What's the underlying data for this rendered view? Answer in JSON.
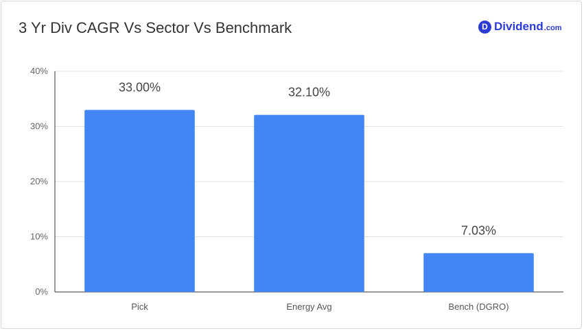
{
  "header": {
    "title": "3 Yr Div CAGR Vs Sector Vs Benchmark",
    "logo_mark": "D",
    "logo_text": "Dividend",
    "logo_tld": ".com"
  },
  "colors": {
    "bar": "#4285f4",
    "grid": "#e0e0e0",
    "axis": "#333333",
    "brand": "#2d3bd6"
  },
  "chart_data": {
    "type": "bar",
    "title": "3 Yr Div CAGR Vs Sector Vs Benchmark",
    "categories": [
      "Pick",
      "Energy Avg",
      "Bench (DGRO)"
    ],
    "values": [
      33.0,
      32.1,
      7.03
    ],
    "data_labels": [
      "33.00%",
      "32.10%",
      "7.03%"
    ],
    "xlabel": "",
    "ylabel": "",
    "ylim": [
      0,
      40
    ],
    "yticks": [
      0,
      10,
      20,
      30,
      40
    ],
    "ytick_labels": [
      "0%",
      "10%",
      "20%",
      "30%",
      "40%"
    ],
    "grid": true,
    "legend": "none"
  }
}
